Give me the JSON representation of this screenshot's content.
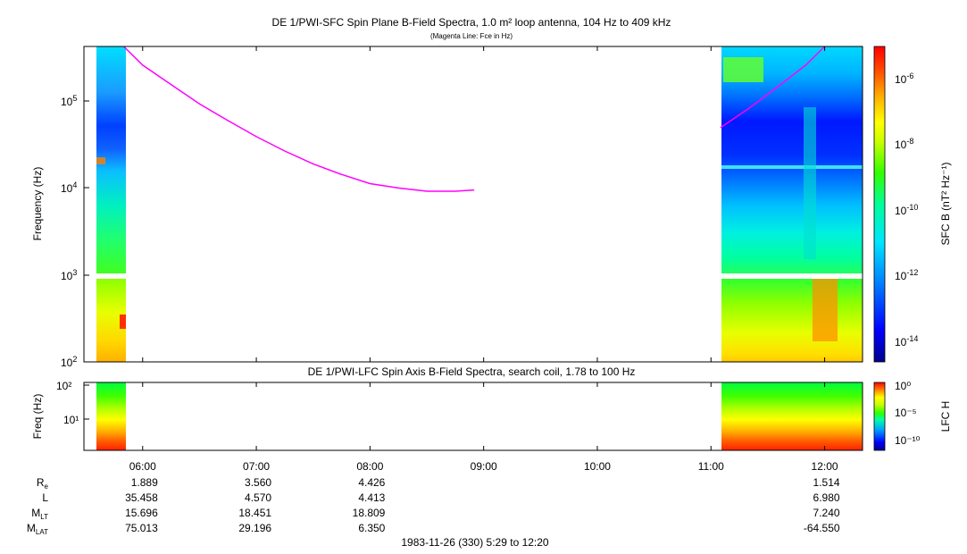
{
  "top_panel": {
    "title": "DE 1/PWI-SFC  Spin Plane B-Field Spectra, 1.0 m² loop antenna, 104 Hz to 409 kHz",
    "subtitle": "(Magenta Line: Fce in Hz)",
    "ylabel": "Frequency (Hz)",
    "colorbar_label": "SFC B (nT² Hz⁻¹)",
    "ytick_exponents": [
      "2",
      "3",
      "4",
      "5"
    ],
    "colorbar_exponents": [
      "-14",
      "-12",
      "-10",
      "-8",
      "-6"
    ]
  },
  "bottom_panel": {
    "title": "DE 1/PWI-LFC  Spin Axis B-Field Spectra, search coil, 1.78 to 100 Hz",
    "ylabel": "Freq (Hz)",
    "ytick_labels": [
      "10¹",
      "10²"
    ],
    "colorbar_label": "LFC H",
    "colorbar_ticks": [
      "10⁰",
      "10⁻⁵",
      "10⁻¹⁰"
    ]
  },
  "x_ticks": [
    "06:00",
    "07:00",
    "08:00",
    "09:00",
    "10:00",
    "11:00",
    "12:00"
  ],
  "ephemeris": {
    "rows": [
      {
        "label": "R",
        "sub": "e",
        "values": [
          "1.889",
          "3.560",
          "4.426",
          "1.514"
        ]
      },
      {
        "label": "L",
        "sub": "",
        "values": [
          "35.458",
          "4.570",
          "4.413",
          "6.980"
        ]
      },
      {
        "label": "M",
        "sub": "LT",
        "values": [
          "15.696",
          "18.451",
          "18.809",
          "7.240"
        ]
      },
      {
        "label": "M",
        "sub": "LAT",
        "values": [
          "75.013",
          "29.196",
          "6.350",
          "-64.550"
        ]
      }
    ]
  },
  "footer": "1983-11-26 (330) 5:29 to 12:20",
  "colors": {
    "fce_line": "#ff00ff",
    "colormap": [
      "#00008b",
      "#0000ff",
      "#0080ff",
      "#00e5ff",
      "#00ff99",
      "#33ff00",
      "#ccff00",
      "#ffff00",
      "#ffb000",
      "#ff5000",
      "#ff0000"
    ]
  },
  "chart_data": [
    {
      "type": "heatmap",
      "title": "DE 1/PWI-SFC  Spin Plane B-Field Spectra, 1.0 m² loop antenna, 104 Hz to 409 kHz",
      "subtitle": "(Magenta Line: Fce in Hz)",
      "xlabel": "",
      "ylabel": "Frequency (Hz)",
      "x_range": [
        "05:29",
        "12:20"
      ],
      "y_scale": "log",
      "ylim": [
        100,
        409000
      ],
      "colorbar": {
        "label": "SFC B (nT² Hz⁻¹)",
        "scale": "log",
        "range": [
          1e-15,
          1e-05
        ]
      },
      "data_intervals": [
        [
          "05:35",
          "05:50"
        ],
        [
          "11:05",
          "12:20"
        ]
      ],
      "series": [
        {
          "name": "Fce",
          "x": [
            "05:50",
            "06:00",
            "06:15",
            "06:30",
            "06:45",
            "07:00",
            "07:15",
            "07:30",
            "07:45",
            "08:00",
            "08:15",
            "08:30",
            "08:45",
            "08:55"
          ],
          "y": [
            409000,
            250000,
            150000,
            90000,
            58000,
            38000,
            26000,
            18500,
            14000,
            11000,
            9800,
            9000,
            9000,
            9300
          ]
        },
        {
          "name": "Fce",
          "x": [
            "11:05",
            "11:20",
            "11:35",
            "11:50",
            "12:00"
          ],
          "y": [
            48000,
            80000,
            140000,
            250000,
            409000
          ]
        }
      ]
    },
    {
      "type": "heatmap",
      "title": "DE 1/PWI-LFC  Spin Axis B-Field Spectra, search coil, 1.78 to 100 Hz",
      "xlabel": "",
      "ylabel": "Freq (Hz)",
      "x_range": [
        "05:29",
        "12:20"
      ],
      "y_scale": "log",
      "ylim": [
        1.78,
        100
      ],
      "colorbar": {
        "label": "LFC H",
        "scale": "log",
        "range": [
          1e-12,
          1
        ]
      },
      "data_intervals": [
        [
          "05:35",
          "05:50"
        ],
        [
          "11:05",
          "12:20"
        ]
      ]
    }
  ]
}
